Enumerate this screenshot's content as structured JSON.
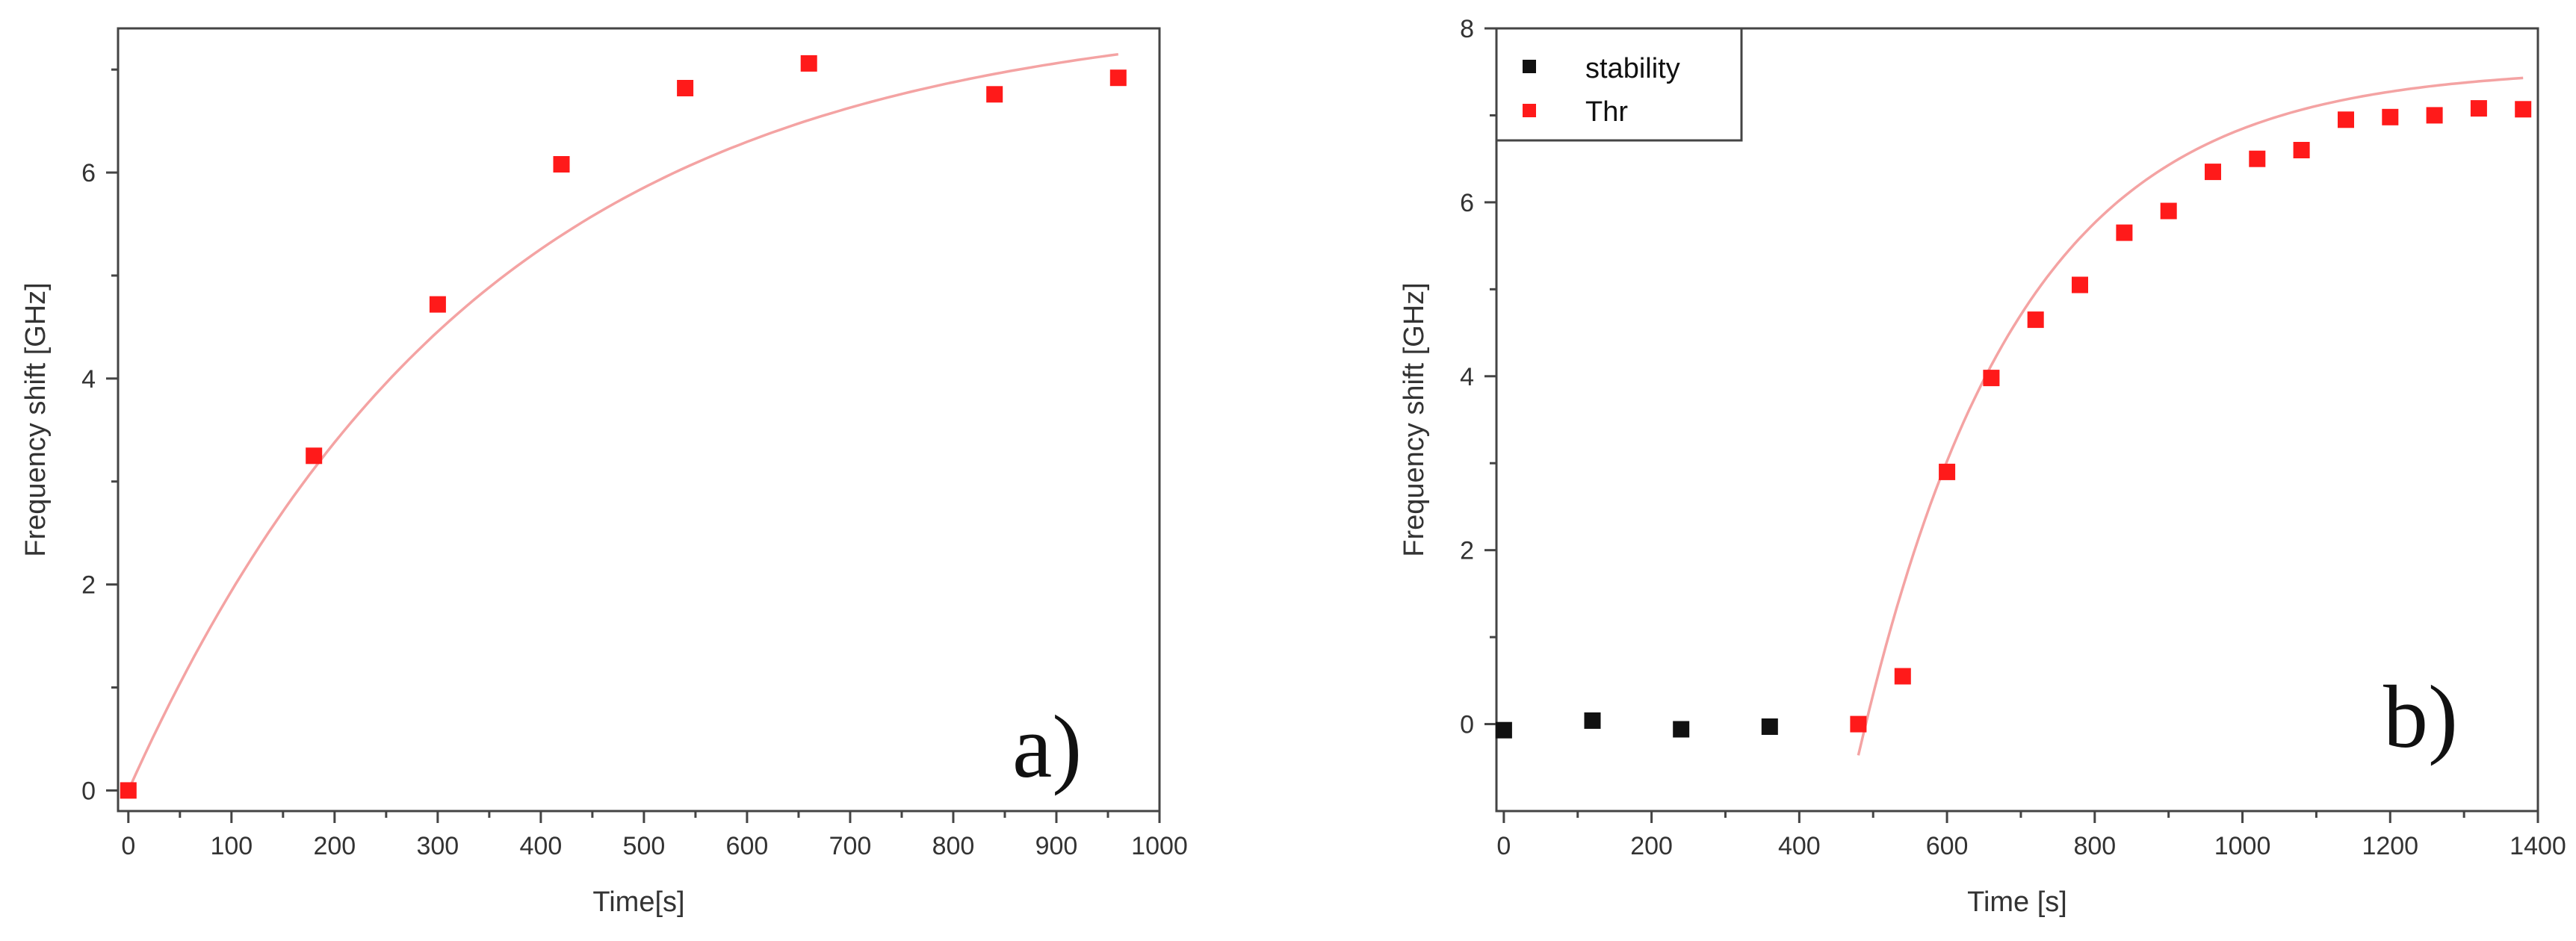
{
  "colors": {
    "thr": "#ff1a1a",
    "stability": "#111111",
    "fit": "#f4a3a3",
    "axis": "#444444"
  },
  "chart_data": [
    {
      "type": "scatter",
      "panel_label": "a)",
      "xlabel": "Time[s]",
      "ylabel": "Frequency shift [GHz]",
      "xlim": [
        -10,
        1000
      ],
      "ylim": [
        -0.2,
        7.4
      ],
      "xticks": [
        0,
        100,
        200,
        300,
        400,
        500,
        600,
        700,
        800,
        900,
        1000
      ],
      "xtick_labels": [
        "0",
        "100",
        "200",
        "300",
        "400",
        "500",
        "600",
        "700",
        "800",
        "900",
        "1000"
      ],
      "yticks": [
        0,
        2,
        4,
        6
      ],
      "ytick_labels": [
        "0",
        "2",
        "4",
        "6"
      ],
      "series": [
        {
          "name": "Thr",
          "marker": "square",
          "x": [
            0,
            180,
            300,
            420,
            540,
            660,
            840,
            960
          ],
          "y": [
            0.0,
            3.25,
            4.72,
            6.08,
            6.82,
            7.06,
            6.76,
            6.92
          ]
        }
      ],
      "fit": {
        "model": "A*(1-exp(-(t-t0)/tau))",
        "A": 7.6,
        "tau": 340,
        "t0": 0,
        "x_range": [
          0,
          960
        ]
      }
    },
    {
      "type": "scatter",
      "panel_label": "b)",
      "xlabel": "Time [s]",
      "ylabel": "Frequency shift [GHz]",
      "xlim": [
        -10,
        1400
      ],
      "ylim": [
        -1,
        8
      ],
      "xticks": [
        0,
        200,
        400,
        600,
        800,
        1000,
        1200,
        1400
      ],
      "xtick_labels": [
        "0",
        "200",
        "400",
        "600",
        "800",
        "1000",
        "1200",
        "1400"
      ],
      "yticks": [
        0,
        2,
        4,
        6,
        8
      ],
      "ytick_labels": [
        "0",
        "2",
        "4",
        "6",
        "8"
      ],
      "legend": {
        "position": "top-left",
        "entries": [
          "stability",
          "Thr"
        ]
      },
      "series": [
        {
          "name": "stability",
          "marker": "square",
          "x": [
            0,
            120,
            240,
            360
          ],
          "y": [
            -0.07,
            0.04,
            -0.06,
            -0.03
          ]
        },
        {
          "name": "Thr",
          "marker": "square",
          "x": [
            480,
            540,
            600,
            660,
            720,
            780,
            840,
            900,
            960,
            1020,
            1080,
            1140,
            1200,
            1260,
            1320,
            1380
          ],
          "y": [
            0.0,
            0.55,
            2.9,
            3.98,
            4.65,
            5.05,
            5.65,
            5.9,
            6.35,
            6.5,
            6.6,
            6.95,
            6.98,
            7.0,
            7.08,
            7.07
          ]
        }
      ],
      "fit": {
        "model": "A*(1-exp(-(t-t0)/tau))",
        "A": 7.55,
        "tau": 215,
        "t0": 490,
        "x_range": [
          480,
          1380
        ]
      }
    }
  ]
}
